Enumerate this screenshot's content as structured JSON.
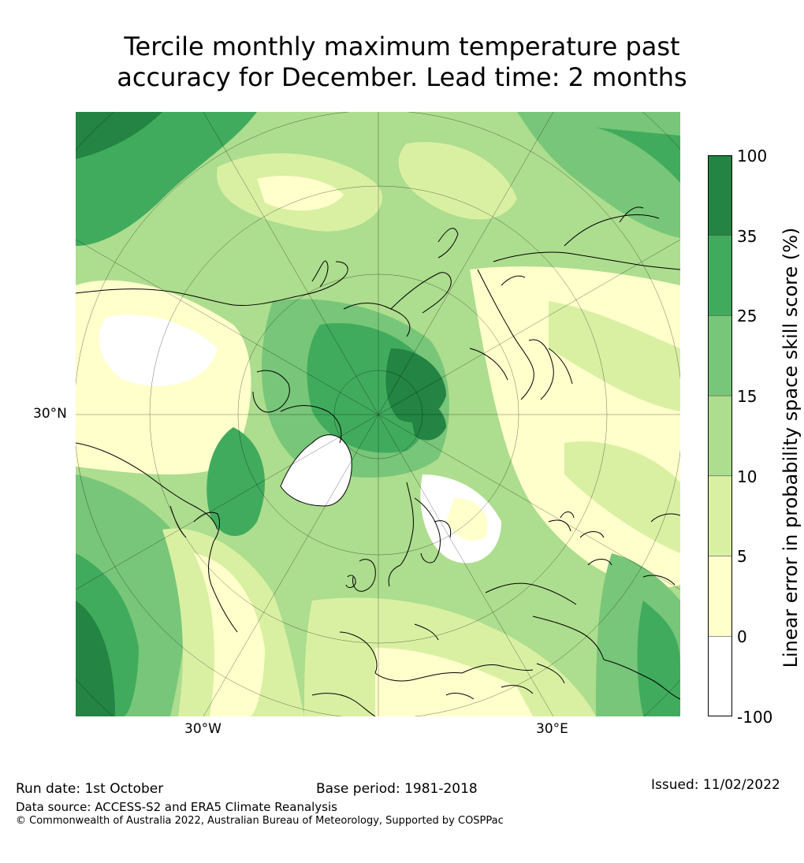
{
  "title": {
    "line1": "Tercile monthly maximum temperature past",
    "line2": "accuracy for December. Lead time: 2 months"
  },
  "map": {
    "projection": "north-polar-stereographic",
    "lat_label": "30°N",
    "lon_labels": [
      "30°W",
      "30°E"
    ]
  },
  "colorbar": {
    "label": "Linear error in probability space skill score (%)",
    "ticks": [
      "100",
      "35",
      "25",
      "15",
      "10",
      "5",
      "0",
      "-100"
    ],
    "bins": [
      {
        "range": "-100 to 0",
        "color": "#ffffff"
      },
      {
        "range": "0 to 5",
        "color": "#ffffcc"
      },
      {
        "range": "5 to 10",
        "color": "#d9f0a3"
      },
      {
        "range": "10 to 15",
        "color": "#addd8e"
      },
      {
        "range": "15 to 25",
        "color": "#78c679"
      },
      {
        "range": "25 to 35",
        "color": "#41ab5d"
      },
      {
        "range": "35 to 100",
        "color": "#238443"
      }
    ]
  },
  "footer": {
    "run_date": "Run date: 1st October",
    "base_period": "Base period: 1981-2018",
    "issued": "Issued: 11/02/2022",
    "data_source": "Data source: ACCESS-S2 and ERA5 Climate Reanalysis",
    "copyright": "© Commonwealth of Australia 2022, Australian Bureau of Meteorology, Supported by COSPPac"
  }
}
